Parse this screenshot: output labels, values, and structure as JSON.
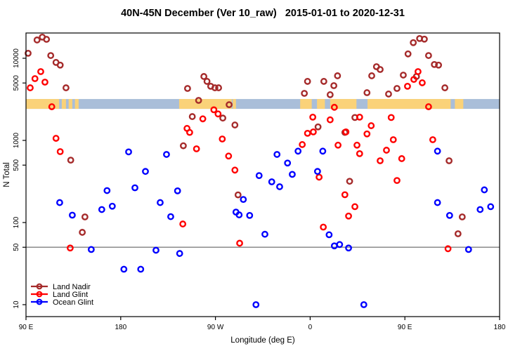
{
  "chart_data": {
    "type": "scatter",
    "title": "40N-45N December (Ver 10_raw)   2015-01-01 to 2020-12-31",
    "xlabel": "Longitude (deg E)",
    "ylabel": "N Total",
    "x_scale": "linear",
    "y_scale": "log",
    "xlim": [
      90,
      540
    ],
    "ylim": [
      7,
      20500
    ],
    "grid": false,
    "x_ticks": [
      {
        "value": 90,
        "label": "90 E"
      },
      {
        "value": 180,
        "label": "180"
      },
      {
        "value": 270,
        "label": "90 W"
      },
      {
        "value": 360,
        "label": "0"
      },
      {
        "value": 450,
        "label": "90 E"
      },
      {
        "value": 540,
        "label": "180"
      }
    ],
    "y_ticks": [
      {
        "value": 10,
        "label": "10"
      },
      {
        "value": 50,
        "label": "50"
      },
      {
        "value": 100,
        "label": "100"
      },
      {
        "value": 500,
        "label": "500"
      },
      {
        "value": 1000,
        "label": "1000"
      },
      {
        "value": 5000,
        "label": "5000"
      },
      {
        "value": 10000,
        "label": "10000"
      }
    ],
    "reference_line": {
      "value": 50,
      "color": "#7F7F7F"
    },
    "map_band": {
      "description": "land/ocean strip of the 40N-45N latitude band drawn across the plot",
      "top_value": 3190,
      "bottom_value": 2420,
      "ocean_color": "#A9BED9",
      "land_color": "#FAD279",
      "land_segments_lon": [
        [
          90,
          121.5
        ],
        [
          124,
          128
        ],
        [
          130.5,
          134
        ],
        [
          136.5,
          140
        ],
        [
          235.5,
          285.5
        ],
        [
          286.5,
          289.5
        ],
        [
          350.5,
          361.5
        ],
        [
          366.5,
          374
        ],
        [
          379,
          404
        ],
        [
          414.5,
          493.5
        ],
        [
          497.5,
          505.5
        ]
      ]
    },
    "legend": {
      "position": "bottom-left",
      "entries": [
        "Land Nadir",
        "Land Glint",
        "Ocean Glint"
      ]
    },
    "series": [
      {
        "name": "Land Nadir",
        "color": "#A52A2A",
        "points": [
          [
            100.5,
            16700
          ],
          [
            105.5,
            18100
          ],
          [
            109.5,
            17000
          ],
          [
            92,
            11500
          ],
          [
            113.5,
            10800
          ],
          [
            118.5,
            8900
          ],
          [
            122.5,
            8250
          ],
          [
            128,
            4370
          ],
          [
            132.5,
            575
          ],
          [
            146,
            117
          ],
          [
            143.5,
            76
          ],
          [
            239.5,
            860
          ],
          [
            243.5,
            4290
          ],
          [
            259,
            6000
          ],
          [
            262,
            5230
          ],
          [
            265.5,
            4560
          ],
          [
            269.5,
            4370
          ],
          [
            273,
            4370
          ],
          [
            254,
            3070
          ],
          [
            283,
            2720
          ],
          [
            248,
            1950
          ],
          [
            277,
            1870
          ],
          [
            288.5,
            1540
          ],
          [
            291.5,
            217
          ],
          [
            354.5,
            3740
          ],
          [
            357.5,
            5230
          ],
          [
            367.5,
            1460
          ],
          [
            373,
            5230
          ],
          [
            379,
            3600
          ],
          [
            382.5,
            4640
          ],
          [
            386,
            6120
          ],
          [
            393,
            1250
          ],
          [
            397.5,
            318
          ],
          [
            402.5,
            1900
          ],
          [
            414,
            3810
          ],
          [
            418.5,
            6120
          ],
          [
            423,
            7900
          ],
          [
            426.5,
            7300
          ],
          [
            434.5,
            3670
          ],
          [
            442.5,
            4290
          ],
          [
            448.5,
            6240
          ],
          [
            453,
            11300
          ],
          [
            458,
            15500
          ],
          [
            461,
            6000
          ],
          [
            464,
            17400
          ],
          [
            468.5,
            17100
          ],
          [
            472.5,
            10800
          ],
          [
            478,
            8400
          ],
          [
            482,
            8250
          ],
          [
            488,
            4370
          ],
          [
            492,
            565
          ],
          [
            500.5,
            73
          ],
          [
            504.5,
            117
          ]
        ]
      },
      {
        "name": "Land Glint",
        "color": "#FF0000",
        "points": [
          [
            94,
            4370
          ],
          [
            98.5,
            5650
          ],
          [
            104,
            6880
          ],
          [
            108,
            5120
          ],
          [
            114.5,
            2570
          ],
          [
            118.5,
            1060
          ],
          [
            122.5,
            730
          ],
          [
            132,
            49
          ],
          [
            239,
            96
          ],
          [
            243,
            1400
          ],
          [
            245.5,
            1250
          ],
          [
            252,
            790
          ],
          [
            258,
            1830
          ],
          [
            268.5,
            2360
          ],
          [
            272.5,
            2100
          ],
          [
            276.5,
            1040
          ],
          [
            282.5,
            645
          ],
          [
            288.5,
            435
          ],
          [
            293,
            56
          ],
          [
            352.5,
            890
          ],
          [
            357.5,
            1220
          ],
          [
            362.5,
            1920
          ],
          [
            363,
            1270
          ],
          [
            368.5,
            357
          ],
          [
            372.5,
            88
          ],
          [
            379,
            1780
          ],
          [
            383,
            2530
          ],
          [
            386.5,
            875
          ],
          [
            393,
            218
          ],
          [
            394,
            1270
          ],
          [
            396.5,
            120
          ],
          [
            402.5,
            156
          ],
          [
            404.5,
            875
          ],
          [
            407,
            1920
          ],
          [
            407,
            690
          ],
          [
            414,
            1200
          ],
          [
            418,
            1510
          ],
          [
            426.5,
            565
          ],
          [
            432.5,
            760
          ],
          [
            437,
            1900
          ],
          [
            439,
            1020
          ],
          [
            442.5,
            325
          ],
          [
            447,
            600
          ],
          [
            452.5,
            4560
          ],
          [
            458.5,
            5530
          ],
          [
            462.5,
            6880
          ],
          [
            466.5,
            5030
          ],
          [
            472.5,
            2570
          ],
          [
            476.5,
            1020
          ],
          [
            491,
            48
          ]
        ]
      },
      {
        "name": "Ocean Glint",
        "color": "#0000FF",
        "points": [
          [
            122,
            175
          ],
          [
            134,
            123
          ],
          [
            152,
            47
          ],
          [
            162,
            144
          ],
          [
            167,
            245
          ],
          [
            172,
            158
          ],
          [
            183,
            27
          ],
          [
            187.5,
            725
          ],
          [
            193.5,
            265
          ],
          [
            199,
            27
          ],
          [
            203.5,
            419
          ],
          [
            213.5,
            46
          ],
          [
            217.5,
            175
          ],
          [
            223.5,
            675
          ],
          [
            227.5,
            118
          ],
          [
            234,
            243
          ],
          [
            236,
            42
          ],
          [
            289.5,
            134
          ],
          [
            292.5,
            124
          ],
          [
            296.5,
            191
          ],
          [
            302.5,
            122
          ],
          [
            308.5,
            10
          ],
          [
            311.5,
            373
          ],
          [
            317,
            72
          ],
          [
            323.5,
            313
          ],
          [
            328.5,
            675
          ],
          [
            331,
            273
          ],
          [
            338.5,
            530
          ],
          [
            343,
            386
          ],
          [
            348.5,
            740
          ],
          [
            367,
            419
          ],
          [
            372,
            740
          ],
          [
            378,
            71
          ],
          [
            383,
            52
          ],
          [
            388,
            54
          ],
          [
            396.5,
            49
          ],
          [
            411,
            10
          ],
          [
            481,
            740
          ],
          [
            481,
            175
          ],
          [
            492.5,
            122
          ],
          [
            510.5,
            47
          ],
          [
            521.5,
            144
          ],
          [
            525.5,
            250
          ],
          [
            531.5,
            156
          ]
        ]
      }
    ]
  }
}
